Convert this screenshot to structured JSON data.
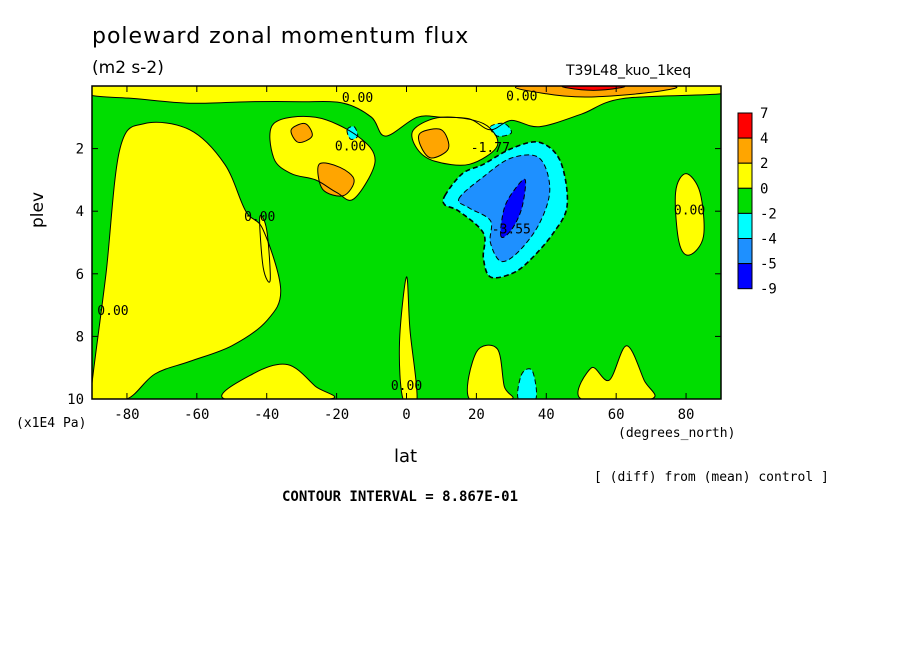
{
  "chart_data": {
    "type": "heatmap",
    "title": "poleward zonal momentum flux",
    "units": "(m2 s-2)",
    "run_label": "T39L48_kuo_1keq",
    "xlabel": "lat",
    "x_unit": "(degrees_north)",
    "ylabel": "plev",
    "y_unit": "(x1E4 Pa)",
    "xlim": [
      -90,
      90
    ],
    "ylim": [
      10,
      0
    ],
    "x_ticks": [
      "-80",
      "-60",
      "-40",
      "-20",
      "0",
      "20",
      "40",
      "60",
      "80"
    ],
    "x_tick_values": [
      -80,
      -60,
      -40,
      -20,
      0,
      20,
      40,
      60,
      80
    ],
    "y_ticks": [
      "2",
      "4",
      "6",
      "8",
      "10"
    ],
    "y_tick_values": [
      2,
      4,
      6,
      8,
      10
    ],
    "colorbar_levels": [
      "7",
      "4",
      "2",
      "0",
      "-2",
      "-4",
      "-5",
      "-9"
    ],
    "colorbar_colors": [
      "#ff0000",
      "#ffa500",
      "#ffff00",
      "#00dd00",
      "#00ffff",
      "#1e90ff",
      "#0000ff"
    ],
    "contour_interval": "CONTOUR INTERVAL = 8.867E-01",
    "note": "[ (diff) from (mean) control ]",
    "contour_labels": [
      {
        "text": "0.00",
        "lat": -14,
        "p": 0.4
      },
      {
        "text": "0.00",
        "lat": 33,
        "p": 0.35
      },
      {
        "text": "0.00",
        "lat": -16,
        "p": 1.95
      },
      {
        "text": "0.00",
        "lat": -42,
        "p": 4.2
      },
      {
        "text": "0.00",
        "lat": -84,
        "p": 7.2
      },
      {
        "text": "0.00",
        "lat": 0,
        "p": 9.6
      },
      {
        "text": "0.00",
        "lat": 81,
        "p": 4.0
      },
      {
        "text": "-1.77",
        "lat": 24,
        "p": 2.0
      },
      {
        "text": "-3.55",
        "lat": 30,
        "p": 4.6
      }
    ],
    "regions": [
      {
        "name": "background",
        "value": -1,
        "color": "#00dd00",
        "pts": [
          [
            -90,
            0
          ],
          [
            90,
            0
          ],
          [
            90,
            10
          ],
          [
            -90,
            10
          ]
        ]
      },
      {
        "name": "yellow-southern",
        "value": 1,
        "color": "#ffff00",
        "pts": [
          [
            -90,
            9.5
          ],
          [
            -86,
            6
          ],
          [
            -82,
            2
          ],
          [
            -75,
            1.2
          ],
          [
            -62,
            1.4
          ],
          [
            -52,
            2.5
          ],
          [
            -46,
            4
          ],
          [
            -41,
            4.6
          ],
          [
            -36,
            6.5
          ],
          [
            -40,
            7.5
          ],
          [
            -50,
            8.3
          ],
          [
            -62,
            8.8
          ],
          [
            -72,
            9.2
          ],
          [
            -80,
            10
          ],
          [
            -90,
            10
          ]
        ]
      },
      {
        "name": "yellow-upper-band",
        "value": 1,
        "color": "#ffff00",
        "pts": [
          [
            -90,
            0
          ],
          [
            90,
            0
          ],
          [
            90,
            0.25
          ],
          [
            62,
            0.4
          ],
          [
            50,
            0.9
          ],
          [
            38,
            1.3
          ],
          [
            30,
            1.1
          ],
          [
            24,
            1.4
          ],
          [
            18,
            1.05
          ],
          [
            10,
            1.0
          ],
          [
            3,
            1.0
          ],
          [
            -6,
            1.6
          ],
          [
            -10,
            1.0
          ],
          [
            -18,
            0.55
          ],
          [
            -30,
            0.5
          ],
          [
            -45,
            0.5
          ],
          [
            -62,
            0.55
          ],
          [
            -78,
            0.4
          ],
          [
            -90,
            0.3
          ]
        ]
      },
      {
        "name": "yellow-south-midlat",
        "value": 1,
        "color": "#ffff00",
        "pts": [
          [
            -38,
            1.2
          ],
          [
            -26,
            1.0
          ],
          [
            -14,
            1.6
          ],
          [
            -9,
            2.4
          ],
          [
            -15,
            3.6
          ],
          [
            -20,
            3.4
          ],
          [
            -26,
            3.0
          ],
          [
            -33,
            2.8
          ],
          [
            -38,
            2.3
          ]
        ]
      },
      {
        "name": "yellow-tropics-upper",
        "value": 1,
        "color": "#ffff00",
        "pts": [
          [
            2,
            1.4
          ],
          [
            10,
            1.0
          ],
          [
            22,
            1.2
          ],
          [
            26,
            1.9
          ],
          [
            18,
            2.5
          ],
          [
            8,
            2.4
          ],
          [
            3,
            2.0
          ]
        ]
      },
      {
        "name": "yellow-spike",
        "value": 1,
        "color": "#ffff00",
        "pts": [
          [
            -42,
            4.2
          ],
          [
            -40,
            4.6
          ],
          [
            -39,
            6.2
          ],
          [
            -41,
            5.8
          ]
        ]
      },
      {
        "name": "yellow-north-pole",
        "value": 1,
        "color": "#ffff00",
        "pts": [
          [
            77,
            3.4
          ],
          [
            80,
            2.8
          ],
          [
            84,
            3.4
          ],
          [
            85,
            4.8
          ],
          [
            81,
            5.4
          ],
          [
            78,
            5.0
          ]
        ]
      },
      {
        "name": "yellow-equator-low",
        "value": 1,
        "color": "#ffff00",
        "pts": [
          [
            -1,
            10
          ],
          [
            -2,
            8.2
          ],
          [
            0,
            6.1
          ],
          [
            1,
            7.8
          ],
          [
            3,
            10
          ]
        ]
      },
      {
        "name": "yellow-surface-south",
        "value": 1,
        "color": "#ffff00",
        "pts": [
          [
            -52,
            10
          ],
          [
            -44,
            9.2
          ],
          [
            -34,
            8.9
          ],
          [
            -26,
            9.6
          ],
          [
            -22,
            10
          ]
        ]
      },
      {
        "name": "yellow-surface-north1",
        "value": 1,
        "color": "#ffff00",
        "pts": [
          [
            18,
            10
          ],
          [
            20,
            8.5
          ],
          [
            26,
            8.4
          ],
          [
            28,
            9.6
          ],
          [
            30,
            10
          ]
        ]
      },
      {
        "name": "yellow-surface-north2",
        "value": 1,
        "color": "#ffff00",
        "pts": [
          [
            50,
            10
          ],
          [
            53,
            9.0
          ],
          [
            58,
            9.4
          ],
          [
            63,
            8.3
          ],
          [
            68,
            9.4
          ],
          [
            70,
            10
          ]
        ]
      },
      {
        "name": "orange-1",
        "value": 3,
        "color": "#ffa500",
        "pts": [
          [
            -25,
            2.5
          ],
          [
            -19,
            2.6
          ],
          [
            -15,
            3.0
          ],
          [
            -18,
            3.5
          ],
          [
            -24,
            3.3
          ]
        ]
      },
      {
        "name": "orange-2",
        "value": 3,
        "color": "#ffa500",
        "pts": [
          [
            4,
            1.5
          ],
          [
            10,
            1.4
          ],
          [
            12,
            2.0
          ],
          [
            7,
            2.3
          ],
          [
            4,
            1.9
          ]
        ]
      },
      {
        "name": "orange-3",
        "value": 3,
        "color": "#ffa500",
        "pts": [
          [
            -33,
            1.4
          ],
          [
            -29,
            1.2
          ],
          [
            -27,
            1.6
          ],
          [
            -31,
            1.8
          ]
        ]
      },
      {
        "name": "orange-top",
        "value": 3,
        "color": "#ffa500",
        "pts": [
          [
            33,
            0
          ],
          [
            75,
            0
          ],
          [
            70,
            0.2
          ],
          [
            52,
            0.35
          ],
          [
            40,
            0.25
          ]
        ]
      },
      {
        "name": "red-top",
        "value": 5,
        "color": "#ff0000",
        "pts": [
          [
            45,
            0
          ],
          [
            62,
            0
          ],
          [
            57,
            0.12
          ],
          [
            50,
            0.12
          ]
        ]
      },
      {
        "name": "cyan-main",
        "value": -3,
        "color": "#00ffff",
        "pts": [
          [
            11,
            3.5
          ],
          [
            16,
            2.8
          ],
          [
            22,
            2.5
          ],
          [
            30,
            2.0
          ],
          [
            38,
            1.8
          ],
          [
            44,
            2.4
          ],
          [
            46,
            3.8
          ],
          [
            42,
            4.7
          ],
          [
            35,
            5.6
          ],
          [
            30,
            6.0
          ],
          [
            24,
            6.1
          ],
          [
            22,
            5.5
          ],
          [
            22,
            4.7
          ],
          [
            15,
            4.0
          ],
          [
            11,
            3.8
          ]
        ]
      },
      {
        "name": "cyan-small-1",
        "value": -3,
        "color": "#00ffff",
        "pts": [
          [
            -17,
            1.4
          ],
          [
            -15,
            1.3
          ],
          [
            -14,
            1.6
          ],
          [
            -16,
            1.7
          ]
        ]
      },
      {
        "name": "cyan-small-2",
        "value": -3,
        "color": "#00ffff",
        "pts": [
          [
            24,
            1.3
          ],
          [
            28,
            1.2
          ],
          [
            30,
            1.5
          ],
          [
            26,
            1.6
          ]
        ]
      },
      {
        "name": "cyan-surface",
        "value": -3,
        "color": "#00ffff",
        "pts": [
          [
            32,
            10
          ],
          [
            33,
            9.2
          ],
          [
            36,
            9.1
          ],
          [
            37,
            10
          ]
        ]
      },
      {
        "name": "blue-1",
        "value": -4.5,
        "color": "#1e90ff",
        "pts": [
          [
            15,
            3.6
          ],
          [
            22,
            2.9
          ],
          [
            30,
            2.3
          ],
          [
            38,
            2.3
          ],
          [
            41,
            3.3
          ],
          [
            38,
            4.4
          ],
          [
            32,
            5.3
          ],
          [
            27,
            5.6
          ],
          [
            24,
            5.0
          ],
          [
            24,
            4.3
          ],
          [
            18,
            3.9
          ]
        ]
      },
      {
        "name": "blue-2",
        "value": -7,
        "color": "#0000ff",
        "pts": [
          [
            27,
            4.8
          ],
          [
            28,
            3.9
          ],
          [
            31,
            3.3
          ],
          [
            34,
            3.0
          ],
          [
            33,
            3.9
          ],
          [
            30,
            4.6
          ]
        ]
      }
    ]
  }
}
